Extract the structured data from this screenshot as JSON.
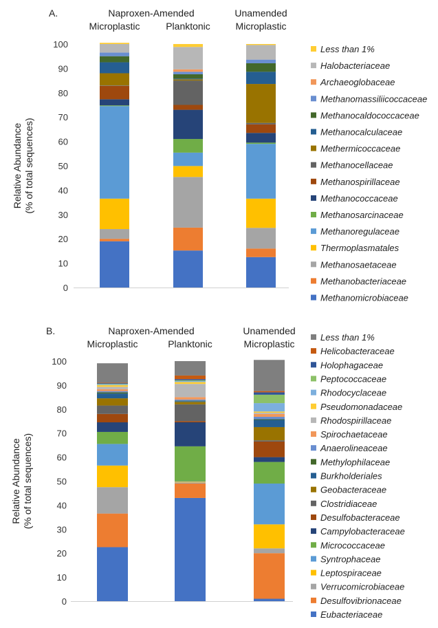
{
  "chart_data": [
    {
      "type": "bar",
      "stacked": true,
      "panel_label": "A.",
      "group_headers": [
        "Naproxen-Amended",
        "Unamended"
      ],
      "categories": [
        "Microplastic",
        "Planktonic",
        "Microplastic"
      ],
      "ylabel_lines": [
        "Relative Abundance",
        "(% of total sequences)"
      ],
      "ylim": [
        0,
        100
      ],
      "yticks": [
        0,
        10,
        20,
        30,
        40,
        50,
        60,
        70,
        80,
        90,
        100
      ],
      "legend_position": "right",
      "series": [
        {
          "name": "Methanomicrobiaceae",
          "color": "#4472C4",
          "values": [
            19,
            15.2,
            12.5
          ]
        },
        {
          "name": "Methanobacteriaceae",
          "color": "#ED7D31",
          "values": [
            1,
            9.4,
            3.5
          ]
        },
        {
          "name": "Methanosaetaceae",
          "color": "#A5A5A5",
          "values": [
            4,
            20.8,
            8.5
          ]
        },
        {
          "name": "Thermoplasmatales",
          "color": "#FFC000",
          "values": [
            12.5,
            4.5,
            12
          ]
        },
        {
          "name": "Methanoregulaceae",
          "color": "#5B9BD5",
          "values": [
            38,
            5.5,
            22.5
          ]
        },
        {
          "name": "Methanosarcinaceae",
          "color": "#70AD47",
          "values": [
            0.3,
            5.6,
            0.5
          ]
        },
        {
          "name": "Methanococcaceae",
          "color": "#264478",
          "values": [
            2.5,
            12,
            4
          ]
        },
        {
          "name": "Methanospirillaceae",
          "color": "#9E480E",
          "values": [
            5.5,
            2,
            3.5
          ]
        },
        {
          "name": "Methanocellaceae",
          "color": "#636363",
          "values": [
            0.2,
            10,
            0.6
          ]
        },
        {
          "name": "Methermicoccaceae",
          "color": "#997300",
          "values": [
            5,
            0.5,
            16
          ]
        },
        {
          "name": "Methanocalculaceae",
          "color": "#255E91",
          "values": [
            4.5,
            0.3,
            5
          ]
        },
        {
          "name": "Methanocaldococcaceae",
          "color": "#43682B",
          "values": [
            2.5,
            1.8,
            3.5
          ]
        },
        {
          "name": "Methanomassiliicoccaceae",
          "color": "#698ED0",
          "values": [
            1.5,
            1,
            1.5
          ]
        },
        {
          "name": "Archaeoglobaceae",
          "color": "#F1975A",
          "values": [
            0,
            1,
            0
          ]
        },
        {
          "name": "Halobacteriaceae",
          "color": "#B7B7B7",
          "values": [
            3.5,
            9.2,
            6
          ]
        },
        {
          "name": "Less than 1%",
          "color": "#FFCD33",
          "values": [
            0.5,
            1.2,
            0.4
          ]
        }
      ]
    },
    {
      "type": "bar",
      "stacked": true,
      "panel_label": "B.",
      "group_headers": [
        "Naproxen-Amended",
        "Unamended"
      ],
      "categories": [
        "Microplastic",
        "Planktonic",
        "Microplastic"
      ],
      "ylabel_lines": [
        "Relative Abundance",
        "(% of total sequences)"
      ],
      "ylim": [
        0,
        100
      ],
      "yticks": [
        0,
        10,
        20,
        30,
        40,
        50,
        60,
        70,
        80,
        90,
        100
      ],
      "legend_position": "right",
      "series": [
        {
          "name": "Eubacteriaceae",
          "color": "#4472C4",
          "values": [
            22.5,
            43,
            1
          ]
        },
        {
          "name": "Desulfovibrionaceae",
          "color": "#ED7D31",
          "values": [
            14,
            6,
            19
          ]
        },
        {
          "name": "Verrucomicrobiaceae",
          "color": "#A5A5A5",
          "values": [
            11,
            0.5,
            2
          ]
        },
        {
          "name": "Leptospiraceae",
          "color": "#FFC000",
          "values": [
            9,
            0.3,
            10
          ]
        },
        {
          "name": "Syntrophaceae",
          "color": "#5B9BD5",
          "values": [
            9,
            0.2,
            17
          ]
        },
        {
          "name": "Micrococcaceae",
          "color": "#70AD47",
          "values": [
            5,
            14.5,
            9
          ]
        },
        {
          "name": "Campylobacteraceae",
          "color": "#264478",
          "values": [
            4,
            10,
            2
          ]
        },
        {
          "name": "Desulfobacteraceae",
          "color": "#9E480E",
          "values": [
            3.5,
            0.5,
            6.5
          ]
        },
        {
          "name": "Clostridiaceae",
          "color": "#636363",
          "values": [
            3.5,
            7,
            0.5
          ]
        },
        {
          "name": "Geobacteraceae",
          "color": "#997300",
          "values": [
            3,
            1,
            5.5
          ]
        },
        {
          "name": "Burkholderiales",
          "color": "#255E91",
          "values": [
            2,
            0.3,
            3
          ]
        },
        {
          "name": "Methylophilaceae",
          "color": "#43682B",
          "values": [
            0.5,
            0.2,
            0.3
          ]
        },
        {
          "name": "Anaerolineaceae",
          "color": "#698ED0",
          "values": [
            0.5,
            0.5,
            1
          ]
        },
        {
          "name": "Spirochaetaceae",
          "color": "#F1975A",
          "values": [
            0.8,
            1,
            1.2
          ]
        },
        {
          "name": "Rhodospirillaceae",
          "color": "#B7B7B7",
          "values": [
            1,
            5.5,
            0.5
          ]
        },
        {
          "name": "Pseudomonadaceae",
          "color": "#FFCD33",
          "values": [
            0.7,
            0.8,
            0.5
          ]
        },
        {
          "name": "Rhodocyclaceae",
          "color": "#7CAFDD",
          "values": [
            0.3,
            0.4,
            3.5
          ]
        },
        {
          "name": "Peptococcaceae",
          "color": "#8CC168",
          "values": [
            0.2,
            0.3,
            3.5
          ]
        },
        {
          "name": "Holophagaceae",
          "color": "#2F5597",
          "values": [
            0.3,
            0.5,
            1
          ]
        },
        {
          "name": "Helicobacteraceae",
          "color": "#C55A11",
          "values": [
            0.2,
            1.5,
            0.5
          ]
        },
        {
          "name": "Less than 1%",
          "color": "#7F7F7F",
          "values": [
            8.1,
            6,
            13
          ]
        }
      ]
    }
  ]
}
